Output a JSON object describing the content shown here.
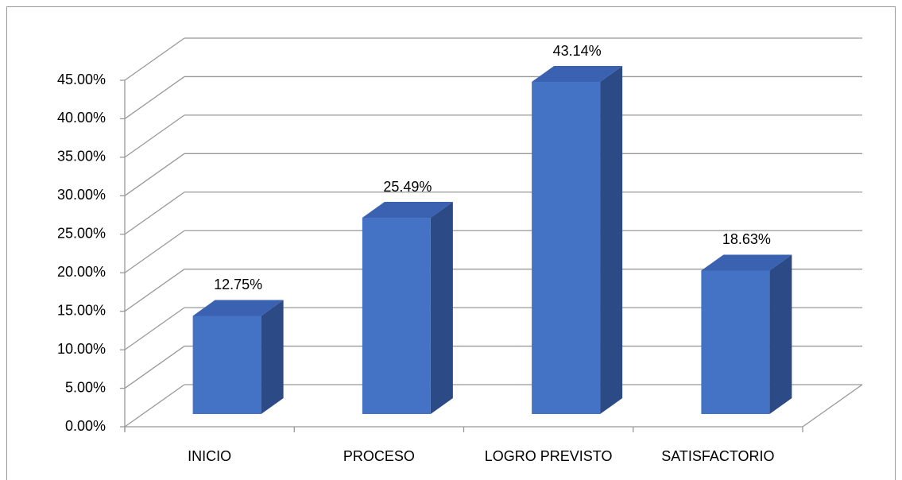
{
  "chart_data": {
    "type": "bar3d",
    "categories": [
      "INICIO",
      "PROCESO",
      "LOGRO PREVISTO",
      "SATISFACTORIO"
    ],
    "values": [
      12.75,
      25.49,
      43.14,
      18.63
    ],
    "value_labels": [
      "12.75%",
      "25.49%",
      "43.14%",
      "18.63%"
    ],
    "color": "#4472c4",
    "ylim": [
      0,
      45
    ],
    "yticks": [
      {
        "value": 0,
        "label": "0.00%"
      },
      {
        "value": 5,
        "label": "5.00%"
      },
      {
        "value": 10,
        "label": "10.00%"
      },
      {
        "value": 15,
        "label": "15.00%"
      },
      {
        "value": 20,
        "label": "20.00%"
      },
      {
        "value": 25,
        "label": "25.00%"
      },
      {
        "value": 30,
        "label": "30.00%"
      },
      {
        "value": 35,
        "label": "35.00%"
      },
      {
        "value": 40,
        "label": "40.00%"
      },
      {
        "value": 45,
        "label": "45.00%"
      }
    ],
    "grid": true
  }
}
